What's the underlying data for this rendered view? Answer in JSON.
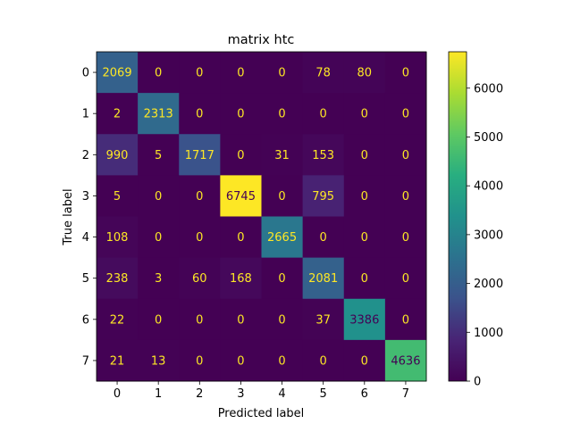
{
  "chart_data": {
    "type": "heatmap",
    "title": "matrix htc",
    "xlabel": "Predicted label",
    "ylabel": "True label",
    "x_tick_labels": [
      "0",
      "1",
      "2",
      "3",
      "4",
      "5",
      "6",
      "7"
    ],
    "y_tick_labels": [
      "0",
      "1",
      "2",
      "3",
      "4",
      "5",
      "6",
      "7"
    ],
    "matrix": [
      [
        2069,
        0,
        0,
        0,
        0,
        78,
        80,
        0
      ],
      [
        2,
        2313,
        0,
        0,
        0,
        0,
        0,
        0
      ],
      [
        990,
        5,
        1717,
        0,
        31,
        153,
        0,
        0
      ],
      [
        5,
        0,
        0,
        6745,
        0,
        795,
        0,
        0
      ],
      [
        108,
        0,
        0,
        0,
        2665,
        0,
        0,
        0
      ],
      [
        238,
        3,
        60,
        168,
        0,
        2081,
        0,
        0
      ],
      [
        22,
        0,
        0,
        0,
        0,
        37,
        3386,
        0
      ],
      [
        21,
        13,
        0,
        0,
        0,
        0,
        0,
        4636
      ]
    ],
    "colormap": "viridis",
    "colorbar": {
      "range": [
        0,
        6745
      ],
      "tick_values": [
        0,
        1000,
        2000,
        3000,
        4000,
        5000,
        6000
      ],
      "tick_labels": [
        "0",
        "1000",
        "2000",
        "3000",
        "4000",
        "5000",
        "6000"
      ]
    },
    "text_colors": {
      "on_dark": "#fde725",
      "on_light": "#440154"
    }
  }
}
